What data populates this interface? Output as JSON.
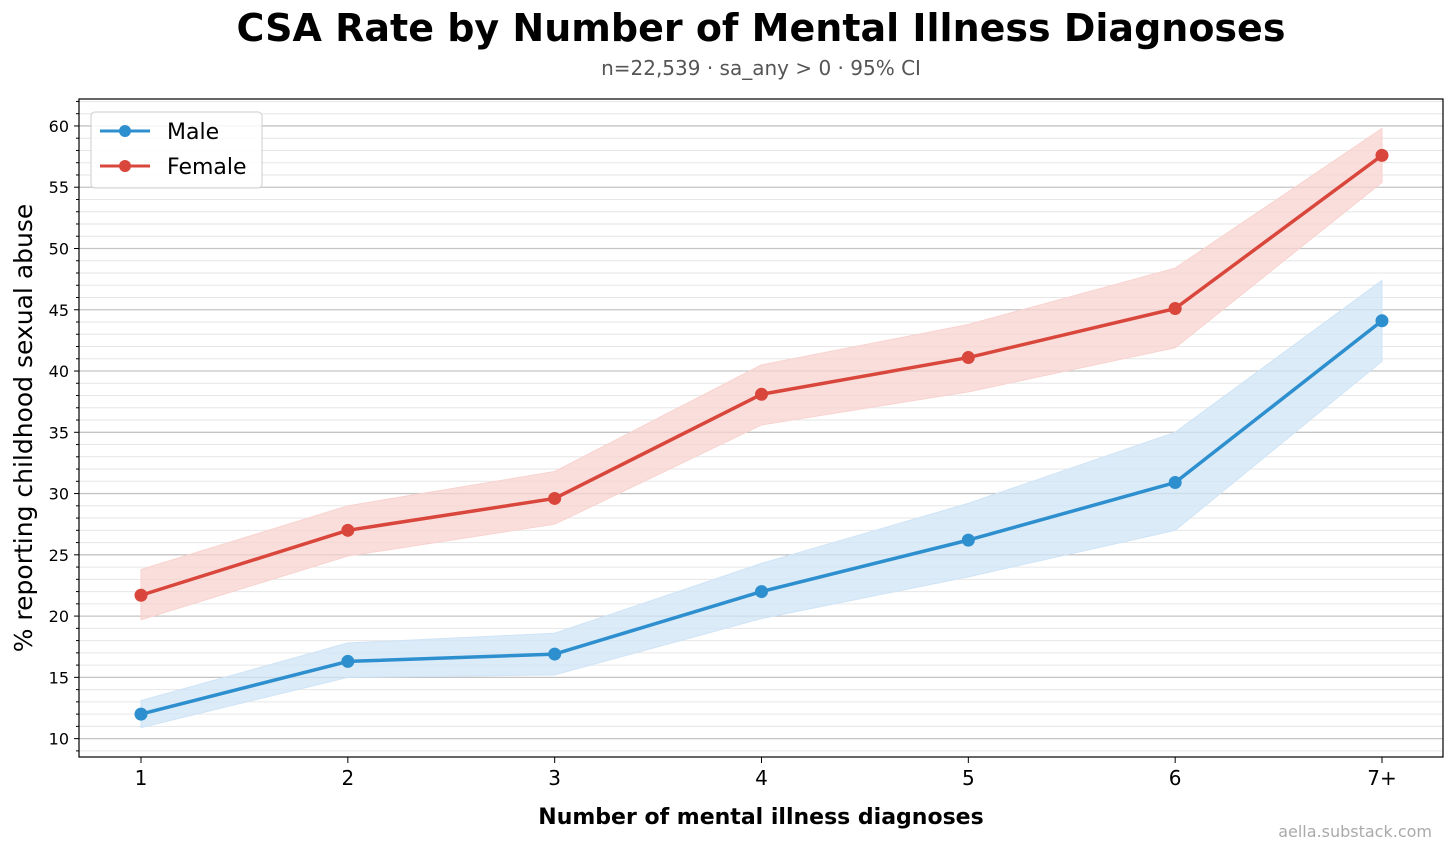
{
  "chart_data": {
    "type": "line",
    "title": "CSA Rate by Number of Mental Illness Diagnoses",
    "subtitle": "n=22,539 · sa_any > 0 · 95% CI",
    "xlabel": "Number of mental illness diagnoses",
    "ylabel": "% reporting childhood sexual abuse",
    "categories": [
      "1",
      "2",
      "3",
      "4",
      "5",
      "6",
      "7+"
    ],
    "ylim": [
      8.5,
      62.2
    ],
    "yticks": [
      "10",
      "15",
      "20",
      "25",
      "30",
      "35",
      "40",
      "45",
      "50",
      "55",
      "60"
    ],
    "grid": true,
    "legend_position": "top-left",
    "series": [
      {
        "name": "Male",
        "color": "#2e8fcf",
        "band_color": "#cfe4f6",
        "values": [
          12.0,
          16.3,
          16.9,
          22.0,
          26.2,
          30.9,
          44.1
        ],
        "ci_low": [
          10.9,
          15.0,
          15.2,
          19.8,
          23.2,
          27.0,
          40.8
        ],
        "ci_high": [
          13.1,
          17.8,
          18.6,
          24.3,
          29.2,
          35.0,
          47.4
        ]
      },
      {
        "name": "Female",
        "color": "#d9463b",
        "band_color": "#f8d3cf",
        "values": [
          21.7,
          27.0,
          29.6,
          38.1,
          41.1,
          45.1,
          57.6
        ],
        "ci_low": [
          19.7,
          24.9,
          27.5,
          35.6,
          38.3,
          41.9,
          55.4
        ],
        "ci_high": [
          23.8,
          29.0,
          31.8,
          40.5,
          43.8,
          48.4,
          59.8
        ]
      }
    ],
    "watermark": "aella.substack.com"
  }
}
